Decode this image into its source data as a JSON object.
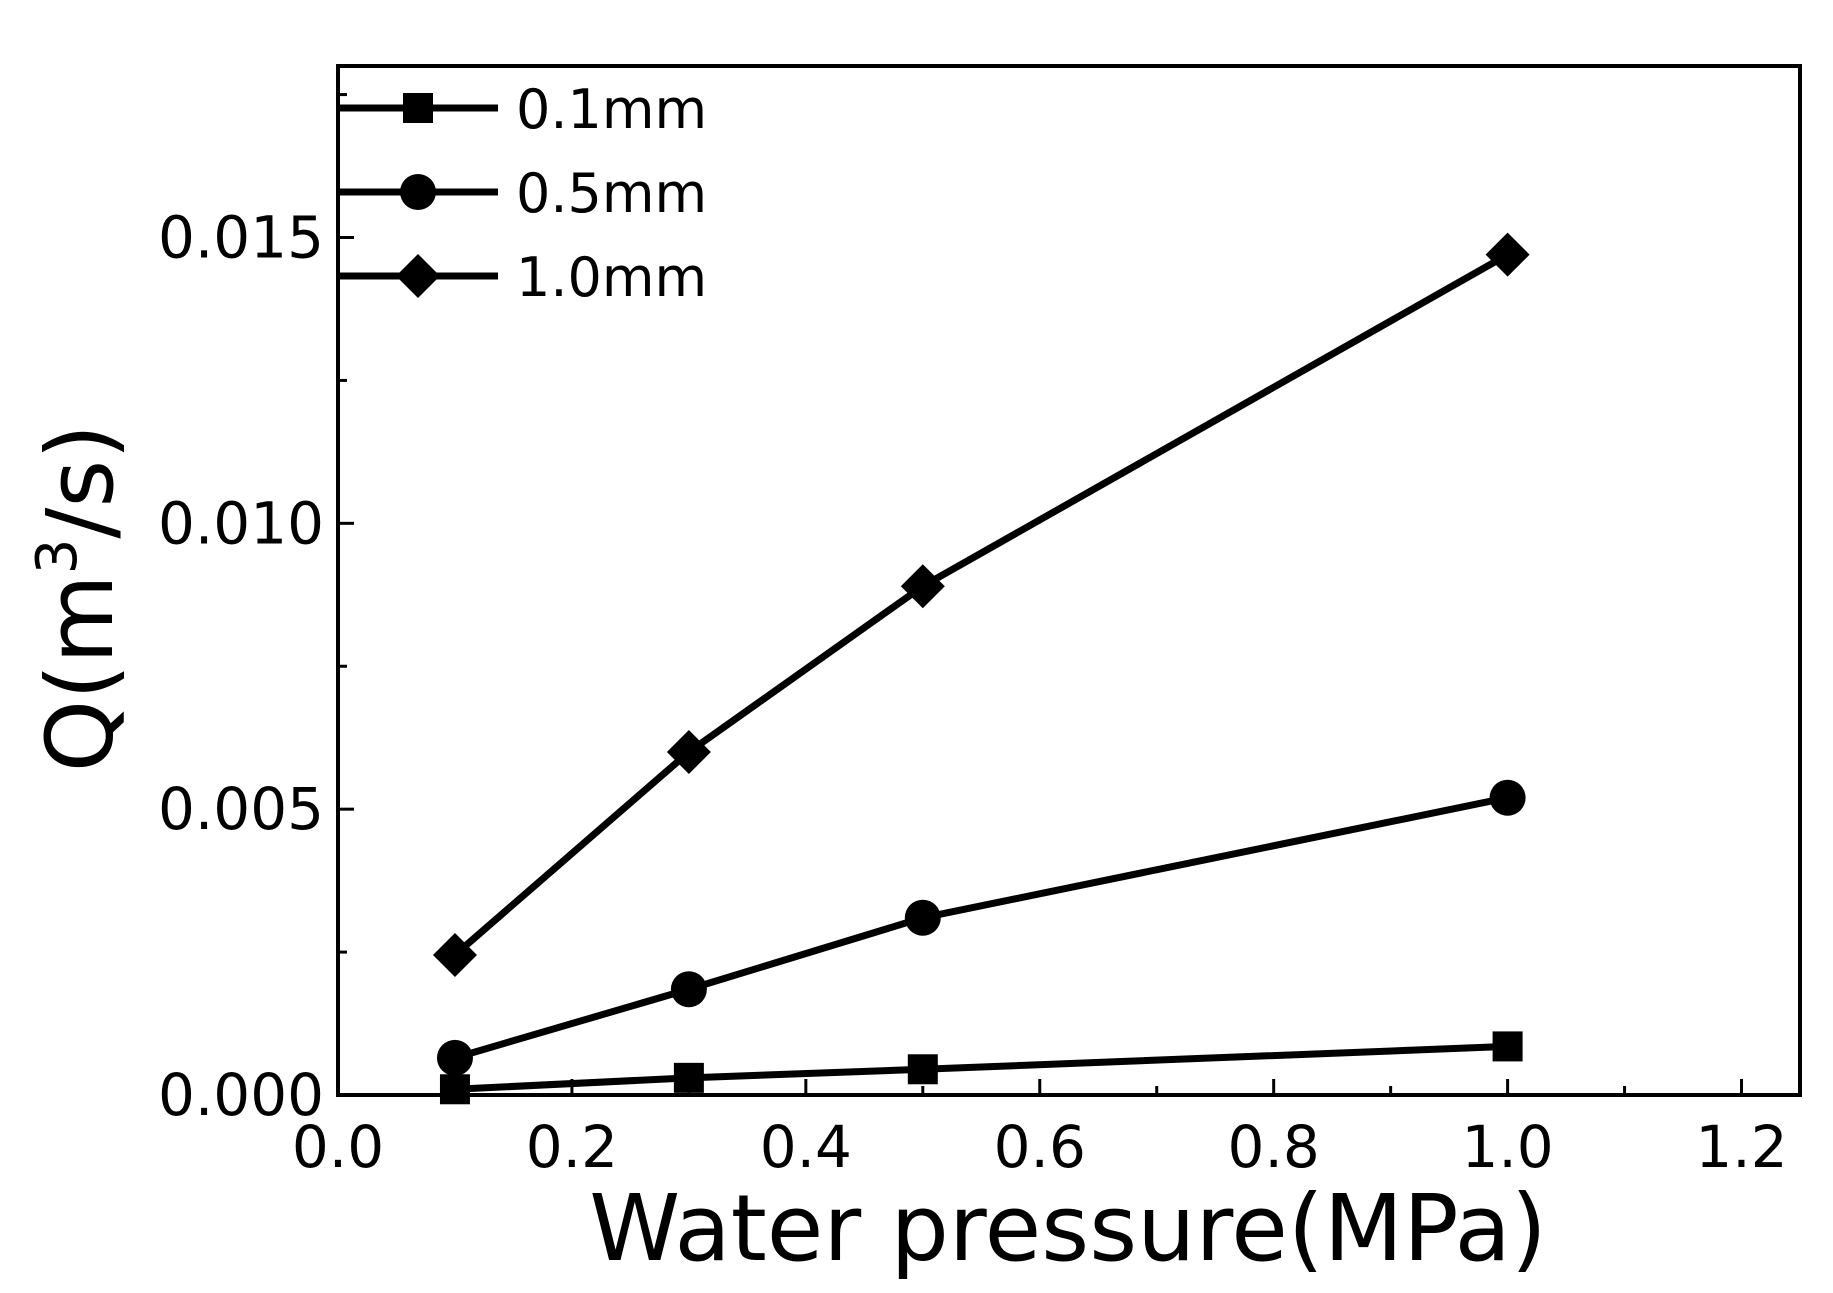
{
  "chart_data": {
    "type": "line",
    "xlabel": "Water pressure(MPa)",
    "ylabel_prefix": "Q(m",
    "ylabel_superscript": "3",
    "ylabel_suffix": "/s)",
    "xlim": [
      0.0,
      1.25
    ],
    "ylim": [
      0.0,
      0.018
    ],
    "x_ticks": [
      0.0,
      0.2,
      0.4,
      0.6,
      0.8,
      1.0,
      1.2
    ],
    "x_tick_labels": [
      "0.0",
      "0.2",
      "0.4",
      "0.6",
      "0.8",
      "1.0",
      "1.2"
    ],
    "y_ticks": [
      0.0,
      0.005,
      0.01,
      0.015
    ],
    "y_tick_labels": [
      "0.000",
      "0.005",
      "0.010",
      "0.015"
    ],
    "grid": false,
    "legend_position": "top-left",
    "x": [
      0.1,
      0.3,
      0.5,
      1.0
    ],
    "series": [
      {
        "name": "0.1mm",
        "marker": "square",
        "values": [
          0.0001,
          0.0003,
          0.00045,
          0.00085
        ]
      },
      {
        "name": "0.5mm",
        "marker": "circle",
        "values": [
          0.00065,
          0.00185,
          0.0031,
          0.0052
        ]
      },
      {
        "name": "1.0mm",
        "marker": "diamond",
        "values": [
          0.00245,
          0.006,
          0.0089,
          0.0147
        ]
      }
    ],
    "color": "#000000"
  }
}
